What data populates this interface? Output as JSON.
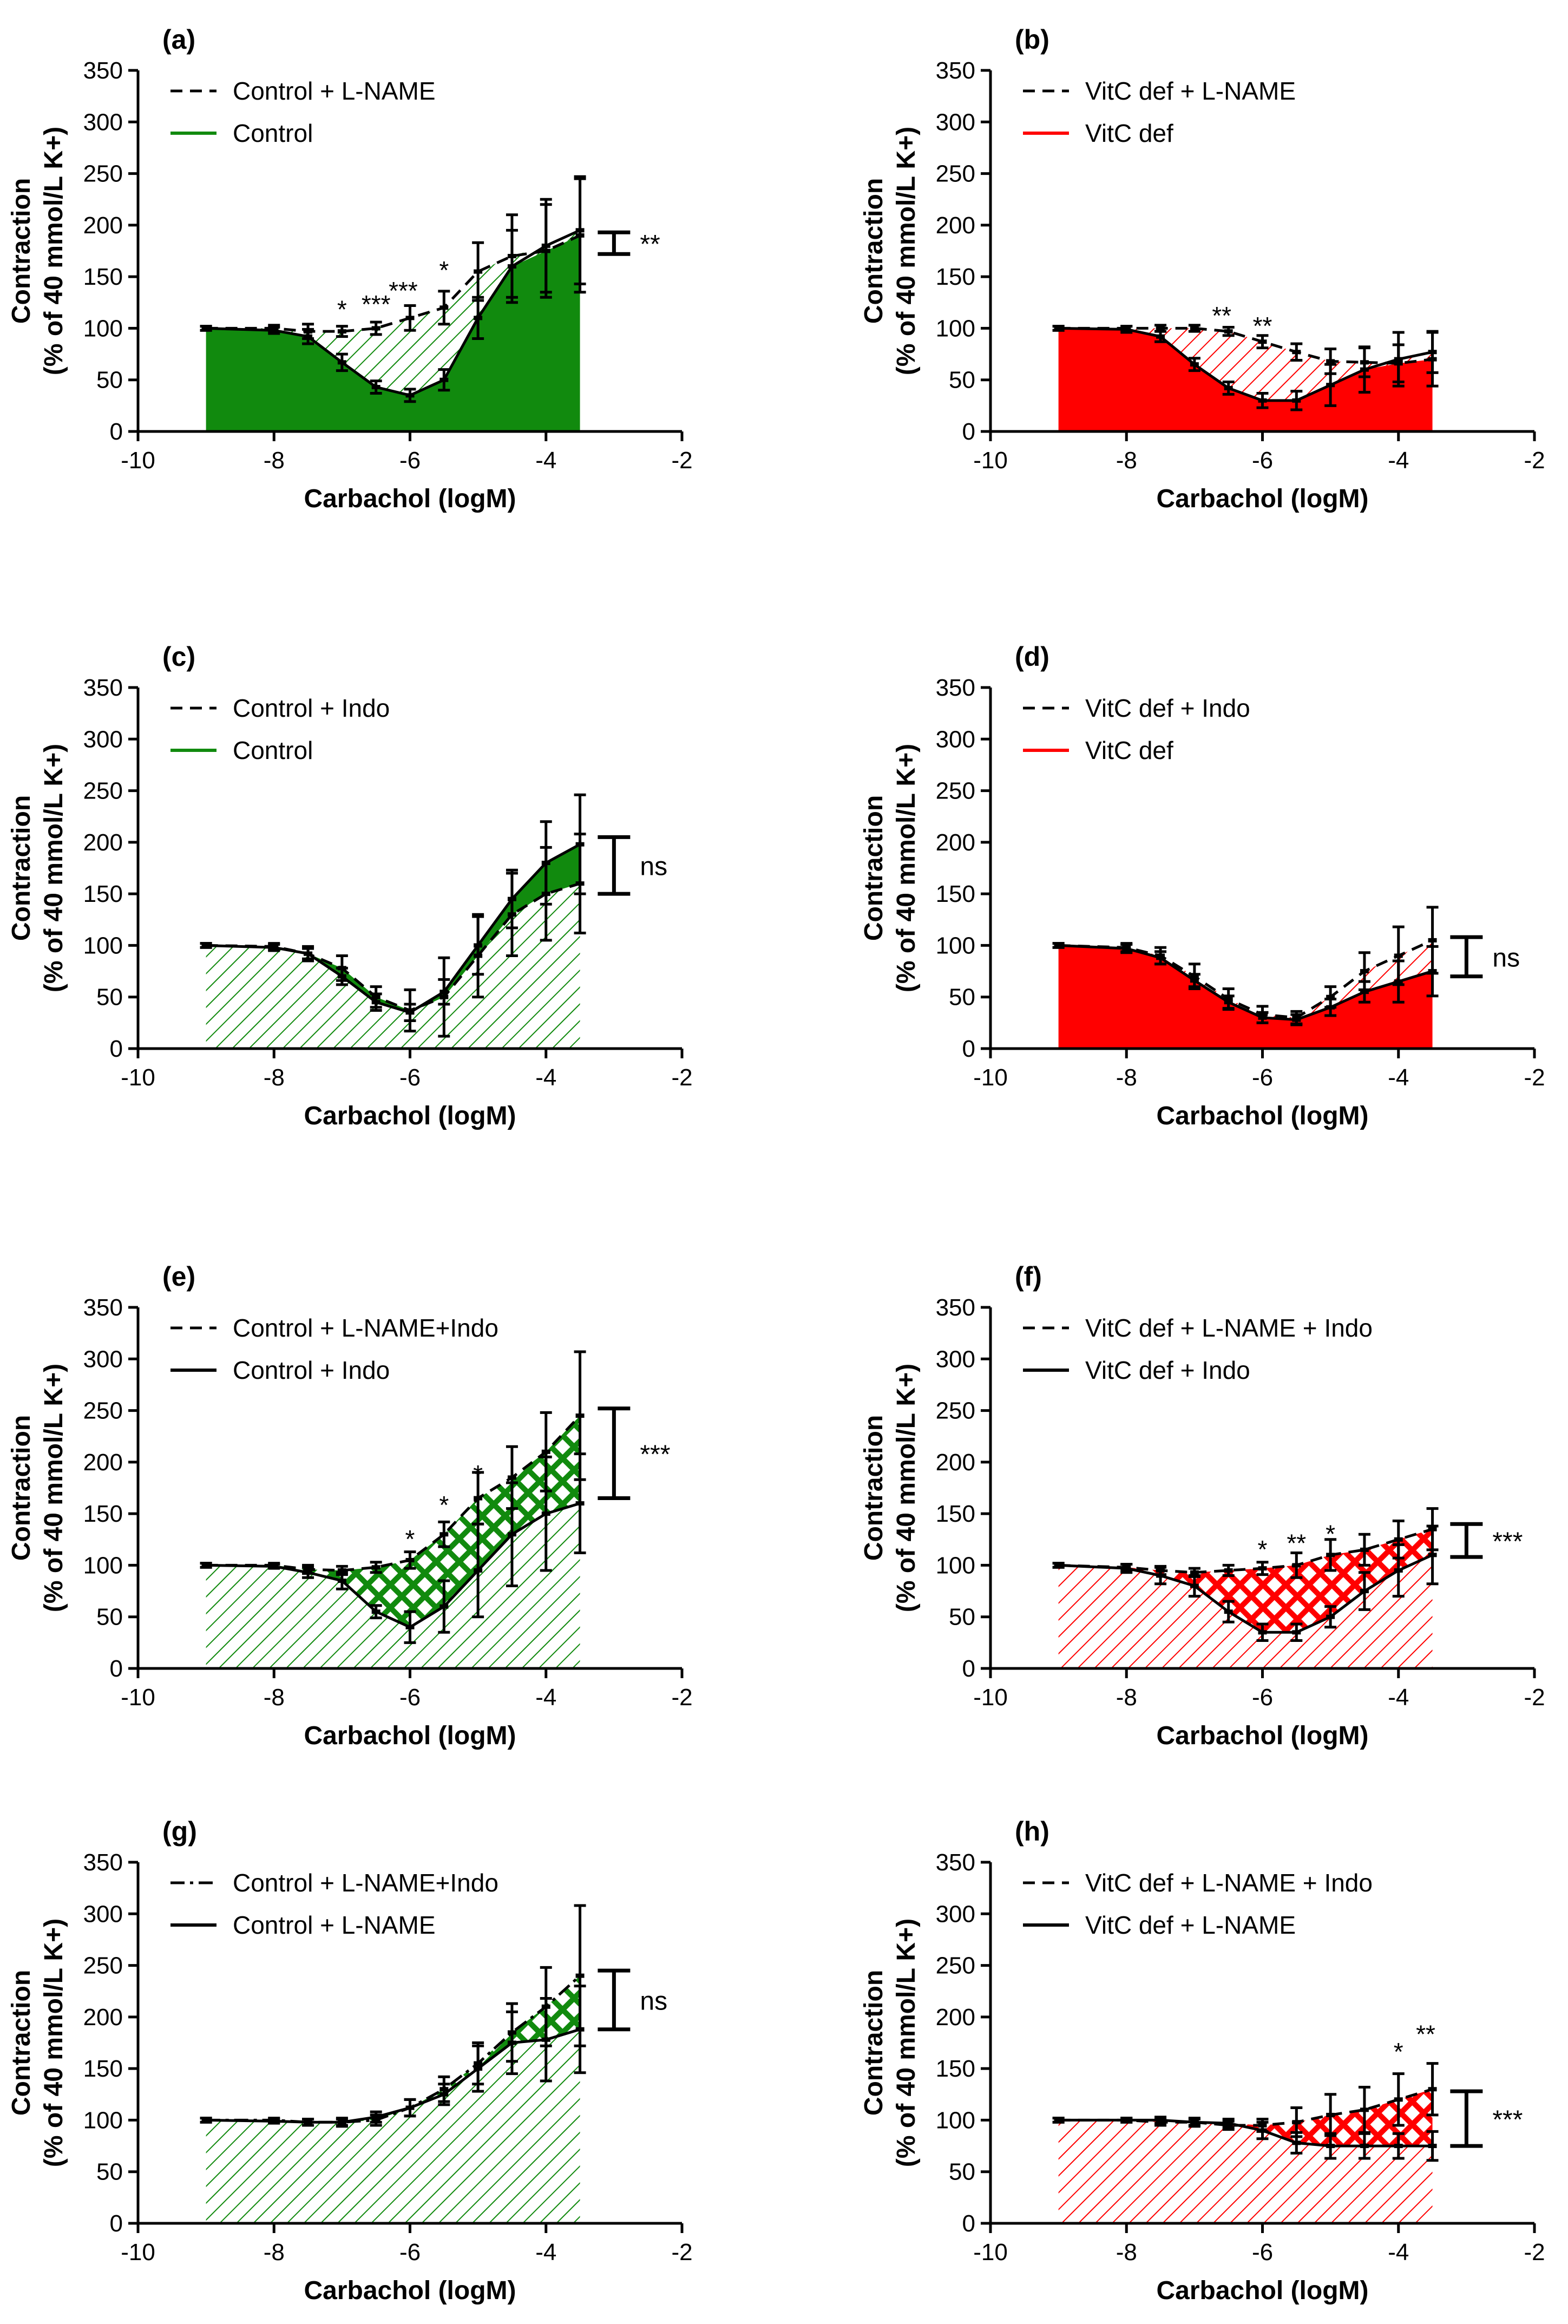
{
  "colors": {
    "green": "#118a0e",
    "red": "#ff0000",
    "black": "#000000"
  },
  "chart_data": [
    {
      "panel": "(a)",
      "type": "line",
      "theme": "green",
      "fill_top": "hatch",
      "fill_bottom": "solid",
      "xlabel": "Carbachol (logM)",
      "ylabel": [
        "Contraction",
        "(% of 40 mmol/L K+)"
      ],
      "xlim": [
        -10,
        -2
      ],
      "ylim": [
        0,
        350
      ],
      "xticks": [
        "-10",
        "-8",
        "-6",
        "-4",
        "-2"
      ],
      "yticks": [
        "0",
        "50",
        "100",
        "150",
        "200",
        "250",
        "300",
        "350"
      ],
      "x": [
        -9,
        -8,
        -7.5,
        -7,
        -6.5,
        -6,
        -5.5,
        -5,
        -4.5,
        -4,
        -3.5
      ],
      "series": [
        {
          "name": "Control + L-NAME",
          "style": "dashed",
          "values": [
            100,
            100,
            97,
            97,
            100,
            110,
            120,
            155,
            170,
            175,
            190
          ],
          "errors": [
            2,
            3,
            7,
            5,
            6,
            12,
            16,
            28,
            40,
            45,
            55
          ]
        },
        {
          "name": "Control",
          "style": "solid",
          "values": [
            100,
            98,
            92,
            67,
            43,
            35,
            50,
            110,
            160,
            180,
            195
          ],
          "errors": [
            2,
            3,
            7,
            8,
            6,
            6,
            10,
            20,
            35,
            45,
            52
          ]
        }
      ],
      "annotations": [
        {
          "text": "*",
          "x": -7,
          "y": 110
        },
        {
          "text": "***",
          "x": -6.5,
          "y": 115
        },
        {
          "text": "***",
          "x": -6.1,
          "y": 128
        },
        {
          "text": "*",
          "x": -5.5,
          "y": 148
        }
      ],
      "sig": {
        "text": "**",
        "y1": 172,
        "y2": 193
      }
    },
    {
      "panel": "(b)",
      "type": "line",
      "theme": "red",
      "fill_top": "hatch",
      "fill_bottom": "solid",
      "xlabel": "Carbachol (logM)",
      "ylabel": [
        "Contraction",
        "(% of 40 mmol/L K+)"
      ],
      "xlim": [
        -10,
        -2
      ],
      "ylim": [
        0,
        350
      ],
      "xticks": [
        "-10",
        "-8",
        "-6",
        "-4",
        "-2"
      ],
      "yticks": [
        "0",
        "50",
        "100",
        "150",
        "200",
        "250",
        "300",
        "350"
      ],
      "x": [
        -9,
        -8,
        -7.5,
        -7,
        -6.5,
        -6,
        -5.5,
        -5,
        -4.5,
        -4,
        -3.5
      ],
      "series": [
        {
          "name": "VitC def + L-NAME",
          "style": "dashed",
          "values": [
            100,
            100,
            100,
            100,
            97,
            87,
            77,
            68,
            67,
            66,
            70
          ],
          "errors": [
            2,
            2,
            3,
            3,
            4,
            6,
            8,
            12,
            14,
            18,
            26
          ]
        },
        {
          "name": "VitC def",
          "style": "solid",
          "values": [
            100,
            99,
            92,
            65,
            42,
            30,
            30,
            45,
            60,
            70,
            77
          ],
          "errors": [
            2,
            3,
            5,
            6,
            6,
            7,
            9,
            20,
            22,
            26,
            20
          ]
        }
      ],
      "annotations": [
        {
          "text": "**",
          "x": -6.6,
          "y": 104
        },
        {
          "text": "**",
          "x": -6.0,
          "y": 94
        }
      ],
      "sig": null
    },
    {
      "panel": "(c)",
      "type": "line",
      "theme": "green",
      "fill_top": "solid",
      "fill_bottom": "hatch",
      "xlabel": "Carbachol (logM)",
      "ylabel": [
        "Contraction",
        "(% of 40 mmol/L K+)"
      ],
      "xlim": [
        -10,
        -2
      ],
      "ylim": [
        0,
        350
      ],
      "xticks": [
        "-10",
        "-8",
        "-6",
        "-4",
        "-2"
      ],
      "yticks": [
        "0",
        "50",
        "100",
        "150",
        "200",
        "250",
        "300",
        "350"
      ],
      "x": [
        -9,
        -8,
        -7.5,
        -7,
        -6.5,
        -6,
        -5.5,
        -5,
        -4.5,
        -4,
        -3.5
      ],
      "series": [
        {
          "name": "Control + Indo",
          "style": "dashed",
          "values": [
            100,
            99,
            92,
            78,
            50,
            37,
            50,
            90,
            130,
            150,
            160
          ],
          "errors": [
            2,
            3,
            7,
            12,
            10,
            20,
            38,
            40,
            40,
            45,
            48
          ]
        },
        {
          "name": "Control",
          "style": "solid",
          "values": [
            100,
            98,
            92,
            70,
            45,
            35,
            55,
            100,
            145,
            180,
            198
          ],
          "errors": [
            2,
            3,
            5,
            8,
            8,
            8,
            12,
            28,
            28,
            40,
            48
          ]
        }
      ],
      "annotations": [],
      "sig": {
        "text": "ns",
        "y1": 150,
        "y2": 205
      }
    },
    {
      "panel": "(d)",
      "type": "line",
      "theme": "red",
      "fill_top": "hatch",
      "fill_bottom": "solid",
      "xlabel": "Carbachol (logM)",
      "ylabel": [
        "Contraction",
        "(% of 40 mmol/L K+)"
      ],
      "xlim": [
        -10,
        -2
      ],
      "ylim": [
        0,
        350
      ],
      "xticks": [
        "-10",
        "-8",
        "-6",
        "-4",
        "-2"
      ],
      "yticks": [
        "0",
        "50",
        "100",
        "150",
        "200",
        "250",
        "300",
        "350"
      ],
      "x": [
        -9,
        -8,
        -7.5,
        -7,
        -6.5,
        -6,
        -5.5,
        -5,
        -4.5,
        -4,
        -3.5
      ],
      "series": [
        {
          "name": "VitC def + Indo",
          "style": "dashed",
          "values": [
            100,
            98,
            90,
            70,
            48,
            33,
            30,
            50,
            75,
            90,
            105
          ],
          "errors": [
            2,
            4,
            8,
            12,
            10,
            8,
            6,
            10,
            18,
            28,
            32
          ]
        },
        {
          "name": "VitC def",
          "style": "solid",
          "values": [
            100,
            97,
            88,
            66,
            45,
            30,
            28,
            40,
            55,
            65,
            75
          ],
          "errors": [
            2,
            4,
            6,
            6,
            6,
            5,
            5,
            8,
            10,
            20,
            24
          ]
        }
      ],
      "annotations": [],
      "sig": {
        "text": "ns",
        "y1": 70,
        "y2": 108
      }
    },
    {
      "panel": "(e)",
      "type": "line",
      "theme": "green",
      "fill_top": "crosshatch",
      "fill_bottom": "hatch",
      "xlabel": "Carbachol (logM)",
      "ylabel": [
        "Contraction",
        "(% of 40 mmol/L K+)"
      ],
      "xlim": [
        -10,
        -2
      ],
      "ylim": [
        0,
        350
      ],
      "xticks": [
        "-10",
        "-8",
        "-6",
        "-4",
        "-2"
      ],
      "yticks": [
        "0",
        "50",
        "100",
        "150",
        "200",
        "250",
        "300",
        "350"
      ],
      "x": [
        -9,
        -8,
        -7.5,
        -7,
        -6.5,
        -6,
        -5.5,
        -5,
        -4.5,
        -4,
        -3.5
      ],
      "series": [
        {
          "name": "Control + L-NAME+Indo",
          "style": "dashed",
          "values": [
            100,
            100,
            96,
            95,
            98,
            105,
            130,
            165,
            185,
            210,
            245
          ],
          "errors": [
            2,
            2,
            4,
            4,
            5,
            8,
            12,
            25,
            30,
            38,
            62
          ]
        },
        {
          "name": "Control + Indo",
          "style": "solid",
          "values": [
            100,
            99,
            93,
            85,
            55,
            40,
            60,
            95,
            130,
            150,
            160
          ],
          "errors": [
            2,
            2,
            5,
            8,
            6,
            15,
            25,
            45,
            50,
            55,
            48
          ]
        }
      ],
      "annotations": [
        {
          "text": "*",
          "x": -6.0,
          "y": 117
        },
        {
          "text": "*",
          "x": -5.5,
          "y": 150
        },
        {
          "text": "*",
          "x": -5.0,
          "y": 180
        }
      ],
      "sig": {
        "text": "***",
        "y1": 165,
        "y2": 252
      }
    },
    {
      "panel": "(f)",
      "type": "line",
      "theme": "red",
      "fill_top": "crosshatch",
      "fill_bottom": "hatch",
      "xlabel": "Carbachol (logM)",
      "ylabel": [
        "Contraction",
        "(% of 40 mmol/L K+)"
      ],
      "xlim": [
        -10,
        -2
      ],
      "ylim": [
        0,
        350
      ],
      "xticks": [
        "-10",
        "-8",
        "-6",
        "-4",
        "-2"
      ],
      "yticks": [
        "0",
        "50",
        "100",
        "150",
        "200",
        "250",
        "300",
        "350"
      ],
      "x": [
        -9,
        -8,
        -7.5,
        -7,
        -6.5,
        -6,
        -5.5,
        -5,
        -4.5,
        -4,
        -3.5
      ],
      "series": [
        {
          "name": "VitC def  + L-NAME + Indo",
          "style": "dashed",
          "values": [
            100,
            98,
            95,
            93,
            95,
            97,
            100,
            110,
            115,
            125,
            135
          ],
          "errors": [
            2,
            3,
            4,
            4,
            5,
            6,
            12,
            15,
            15,
            18,
            20
          ]
        },
        {
          "name": "VitC def + Indo",
          "style": "solid",
          "values": [
            100,
            97,
            90,
            80,
            55,
            35,
            35,
            50,
            75,
            95,
            110
          ],
          "errors": [
            2,
            4,
            8,
            10,
            10,
            8,
            8,
            10,
            18,
            25,
            28
          ]
        }
      ],
      "annotations": [
        {
          "text": "*",
          "x": -6.0,
          "y": 107
        },
        {
          "text": "**",
          "x": -5.5,
          "y": 113
        },
        {
          "text": "*",
          "x": -5.0,
          "y": 122
        }
      ],
      "sig": {
        "text": "***",
        "y1": 108,
        "y2": 140
      }
    },
    {
      "panel": "(g)",
      "type": "line",
      "theme": "green",
      "fill_top": "crosshatch",
      "fill_bottom": "hatch",
      "xlabel": "Carbachol (logM)",
      "ylabel": [
        "Contraction",
        "(% of 40 mmol/L K+)"
      ],
      "xlim": [
        -10,
        -2
      ],
      "ylim": [
        0,
        350
      ],
      "xticks": [
        "-10",
        "-8",
        "-6",
        "-4",
        "-2"
      ],
      "yticks": [
        "0",
        "50",
        "100",
        "150",
        "200",
        "250",
        "300",
        "350"
      ],
      "x": [
        -9,
        -8,
        -7.5,
        -7,
        -6.5,
        -6,
        -5.5,
        -5,
        -4.5,
        -4,
        -3.5
      ],
      "series": [
        {
          "name": "Control + L-NAME+Indo",
          "style": "dashdot",
          "values": [
            100,
            100,
            98,
            98,
            100,
            112,
            130,
            155,
            185,
            210,
            240
          ],
          "errors": [
            2,
            2,
            3,
            3,
            5,
            8,
            12,
            20,
            28,
            38,
            68
          ]
        },
        {
          "name": "Control + L-NAME",
          "style": "solid",
          "values": [
            100,
            99,
            98,
            98,
            103,
            112,
            125,
            150,
            175,
            178,
            188
          ],
          "errors": [
            2,
            2,
            3,
            4,
            5,
            8,
            10,
            22,
            30,
            40,
            42
          ]
        }
      ],
      "annotations": [],
      "sig": {
        "text": "ns",
        "y1": 188,
        "y2": 245
      }
    },
    {
      "panel": "(h)",
      "type": "line",
      "theme": "red",
      "fill_top": "crosshatch",
      "fill_bottom": "hatch",
      "xlabel": "Carbachol (logM)",
      "ylabel": [
        "Contraction",
        "(% of 40 mmol/L K+)"
      ],
      "xlim": [
        -10,
        -2
      ],
      "ylim": [
        0,
        350
      ],
      "xticks": [
        "-10",
        "-8",
        "-6",
        "-4",
        "-2"
      ],
      "yticks": [
        "0",
        "50",
        "100",
        "150",
        "200",
        "250",
        "300",
        "350"
      ],
      "x": [
        -9,
        -8,
        -7.5,
        -7,
        -6.5,
        -6,
        -5.5,
        -5,
        -4.5,
        -4,
        -3.5
      ],
      "series": [
        {
          "name": "VitC def  + L-NAME + Indo",
          "style": "dashed",
          "values": [
            100,
            100,
            98,
            98,
            95,
            95,
            98,
            105,
            110,
            120,
            130
          ],
          "errors": [
            2,
            2,
            3,
            3,
            4,
            6,
            14,
            20,
            22,
            25,
            25
          ]
        },
        {
          "name": "VitC def + L-NAME",
          "style": "solid",
          "values": [
            100,
            100,
            100,
            98,
            97,
            90,
            78,
            75,
            75,
            75,
            75
          ],
          "errors": [
            2,
            2,
            3,
            4,
            4,
            8,
            10,
            12,
            12,
            12,
            14
          ]
        }
      ],
      "annotations": [
        {
          "text": "*",
          "x": -4.0,
          "y": 158
        },
        {
          "text": "**",
          "x": -3.6,
          "y": 175
        }
      ],
      "sig": {
        "text": "***",
        "y1": 75,
        "y2": 128
      }
    }
  ]
}
